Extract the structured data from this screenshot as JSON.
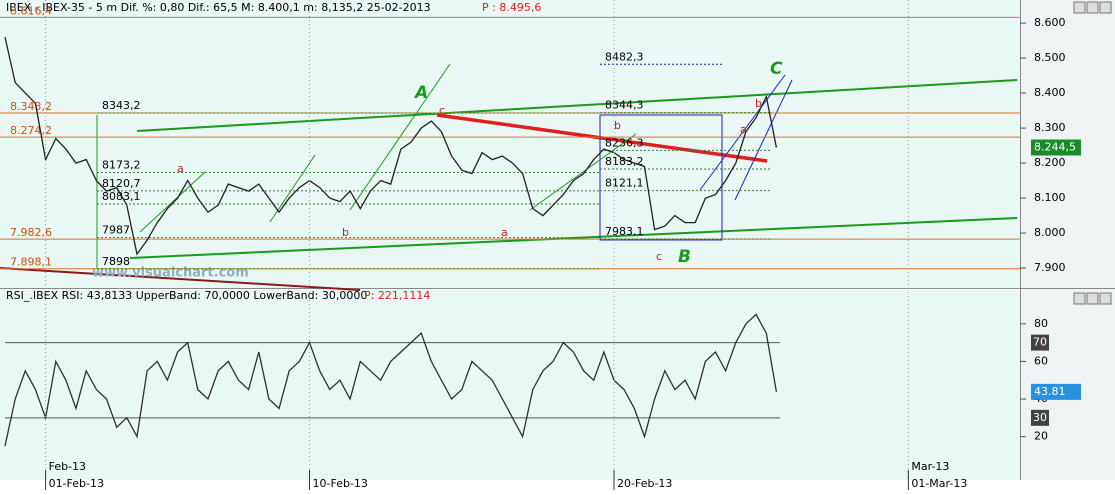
{
  "chart_data": [
    {
      "type": "line",
      "title": "IBEX - IBEX-35 -  5 m Dif. %: 0,80 Dif.: 65,5 M: 8.400,1 m: 8,135,2 25-02-2013",
      "title_price": "P : 8.495,6",
      "watermark": "www.visualchart.com",
      "values": [
        8560,
        8430,
        8400,
        8370,
        8210,
        8270,
        8240,
        8200,
        8210,
        8150,
        8120,
        8130,
        8080,
        7940,
        7980,
        8030,
        8070,
        8100,
        8150,
        8100,
        8060,
        8080,
        8140,
        8130,
        8120,
        8140,
        8100,
        8060,
        8100,
        8130,
        8150,
        8130,
        8100,
        8090,
        8120,
        8070,
        8120,
        8150,
        8140,
        8240,
        8260,
        8300,
        8320,
        8290,
        8220,
        8180,
        8170,
        8230,
        8210,
        8220,
        8200,
        8170,
        8070,
        8050,
        8080,
        8110,
        8150,
        8170,
        8210,
        8240,
        8230,
        8210,
        8200,
        8190,
        8010,
        8020,
        8050,
        8030,
        8030,
        8100,
        8110,
        8150,
        8200,
        8290,
        8330,
        8390,
        8244.5,
        null,
        null,
        null,
        null,
        null,
        null,
        null,
        null,
        null,
        null,
        null,
        null,
        null,
        null,
        null,
        null,
        null,
        null,
        null,
        null,
        null,
        null,
        null
      ],
      "value_label_last": "8.244,5",
      "color": "#202020",
      "ylim": [
        7843,
        8666
      ],
      "yticks": [
        {
          "value": 7900,
          "label": "7.900"
        },
        {
          "value": 8000,
          "label": "8.000"
        },
        {
          "value": 8100,
          "label": "8.100"
        },
        {
          "value": 8200,
          "label": "8.200"
        },
        {
          "value": 8300,
          "label": "8.300"
        },
        {
          "value": 8400,
          "label": "8.400"
        },
        {
          "value": 8500,
          "label": "8.500"
        },
        {
          "value": 8600,
          "label": "8.600"
        }
      ],
      "levels": [
        {
          "value": 8616.4,
          "label": "8.616,4"
        },
        {
          "value": 8343.2,
          "label": "8.343,2"
        },
        {
          "value": 8274.2,
          "label": "8.274,2"
        },
        {
          "value": 7982.6,
          "label": "7.982,6"
        },
        {
          "value": 7898.1,
          "label": "7.898,1"
        }
      ],
      "fib_levels_1": [
        {
          "value": 8343.2,
          "label": "8343,2"
        },
        {
          "value": 8173.2,
          "label": "8173,2"
        },
        {
          "value": 8120.7,
          "label": "8120,7"
        },
        {
          "value": 8083.1,
          "label": "8083,1"
        },
        {
          "value": 7987,
          "label": "7987"
        },
        {
          "value": 7898,
          "label": "7898"
        }
      ],
      "fib_levels_2": [
        {
          "value": 8482.3,
          "label": "8482,3"
        },
        {
          "value": 8344.3,
          "label": "8344,3"
        },
        {
          "value": 8236.3,
          "label": "8236,3"
        },
        {
          "value": 8183.2,
          "label": "8183,2"
        },
        {
          "value": 8121.1,
          "label": "8121,1"
        },
        {
          "value": 7983.1,
          "label": "7983,1"
        }
      ],
      "wave_labels": [
        "A",
        "B",
        "C"
      ],
      "subwave_labels": [
        "a",
        "b",
        "c",
        "a",
        "b",
        "c",
        "b",
        "a"
      ]
    },
    {
      "type": "line",
      "title": "RSI_.IBEX RSI: 43,8133 UpperBand: 70,0000 LowerBand: 30,0000",
      "title_price": "P: 221,1114",
      "values": [
        15,
        40,
        55,
        45,
        30,
        60,
        50,
        35,
        55,
        45,
        40,
        25,
        30,
        20,
        55,
        60,
        50,
        65,
        70,
        45,
        40,
        55,
        60,
        50,
        45,
        65,
        40,
        35,
        55,
        60,
        70,
        55,
        45,
        50,
        40,
        60,
        55,
        50,
        60,
        65,
        70,
        75,
        60,
        50,
        40,
        45,
        60,
        55,
        50,
        40,
        30,
        20,
        45,
        55,
        60,
        70,
        65,
        55,
        50,
        65,
        50,
        45,
        35,
        20,
        40,
        55,
        45,
        50,
        40,
        60,
        65,
        55,
        70,
        80,
        85,
        75,
        43.81,
        null,
        null,
        null,
        null,
        null,
        null,
        null,
        null,
        null,
        null,
        null,
        null,
        null,
        null,
        null,
        null,
        null,
        null,
        null,
        null,
        null,
        null,
        null
      ],
      "value_label_last": "43.81",
      "color": "#303030",
      "ylim": [
        -2,
        90
      ],
      "yticks": [
        20,
        40,
        60,
        80
      ],
      "bands": [
        70,
        30
      ],
      "categories": [
        null,
        null,
        null,
        null,
        "01-Feb-13",
        null,
        null,
        null,
        null,
        null,
        null,
        null,
        null,
        null,
        null,
        null,
        null,
        null,
        null,
        null,
        null,
        null,
        null,
        null,
        null,
        null,
        null,
        null,
        null,
        null,
        "10-Feb-13",
        null,
        null,
        null,
        null,
        null,
        null,
        null,
        null,
        null,
        null,
        null,
        null,
        null,
        null,
        null,
        null,
        null,
        null,
        null,
        null,
        null,
        null,
        null,
        null,
        null,
        null,
        null,
        null,
        null,
        "20-Feb-13",
        null,
        null,
        null,
        null,
        null,
        null,
        null,
        null,
        null,
        null,
        null,
        null,
        null,
        null,
        null,
        null,
        null,
        null,
        null,
        null,
        null,
        null,
        null,
        null,
        null,
        null,
        null,
        null,
        "01-Mar-13",
        null,
        null,
        null,
        null,
        null,
        null,
        null,
        null,
        null,
        null
      ],
      "months": [
        null,
        null,
        null,
        null,
        "Feb-13",
        null,
        null,
        null,
        null,
        null,
        null,
        null,
        null,
        null,
        null,
        null,
        null,
        null,
        null,
        null,
        null,
        null,
        null,
        null,
        null,
        null,
        null,
        null,
        null,
        null,
        null,
        null,
        null,
        null,
        null,
        null,
        null,
        null,
        null,
        null,
        null,
        null,
        null,
        null,
        null,
        null,
        null,
        null,
        null,
        null,
        null,
        null,
        null,
        null,
        null,
        null,
        null,
        null,
        null,
        null,
        null,
        null,
        null,
        null,
        null,
        null,
        null,
        null,
        null,
        null,
        null,
        null,
        null,
        null,
        null,
        null,
        null,
        null,
        null,
        null,
        null,
        null,
        null,
        null,
        null,
        null,
        null,
        null,
        null,
        "Mar-13",
        null,
        null,
        null,
        null,
        null,
        null,
        null,
        null,
        null,
        null
      ]
    }
  ]
}
